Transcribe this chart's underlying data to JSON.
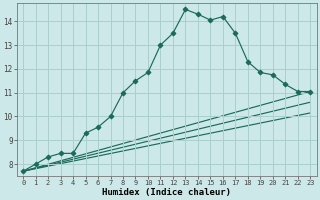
{
  "xlabel": "Humidex (Indice chaleur)",
  "bg_color": "#cde8e8",
  "grid_color": "#aacfcf",
  "line_color": "#1a6b5a",
  "xlim": [
    -0.5,
    23.5
  ],
  "ylim": [
    7.5,
    14.75
  ],
  "xticks": [
    0,
    1,
    2,
    3,
    4,
    5,
    6,
    7,
    8,
    9,
    10,
    11,
    12,
    13,
    14,
    15,
    16,
    17,
    18,
    19,
    20,
    21,
    22,
    23
  ],
  "yticks": [
    8,
    9,
    10,
    11,
    12,
    13,
    14
  ],
  "curve_x": [
    0,
    1,
    2,
    3,
    4,
    5,
    6,
    7,
    8,
    9,
    10,
    11,
    12,
    13,
    14,
    15,
    16,
    17,
    18,
    19,
    20,
    21,
    22,
    23
  ],
  "curve_y": [
    7.7,
    8.0,
    8.3,
    8.45,
    8.45,
    9.3,
    9.55,
    10.0,
    11.0,
    11.5,
    11.85,
    13.0,
    13.5,
    14.5,
    14.3,
    14.05,
    14.2,
    13.5,
    12.3,
    11.85,
    11.75,
    11.35,
    11.05,
    11.05
  ],
  "fan_lines": [
    {
      "x": [
        0,
        23
      ],
      "y": [
        7.7,
        11.05
      ]
    },
    {
      "x": [
        0,
        23
      ],
      "y": [
        7.7,
        10.6
      ]
    },
    {
      "x": [
        0,
        23
      ],
      "y": [
        7.7,
        10.15
      ]
    }
  ]
}
